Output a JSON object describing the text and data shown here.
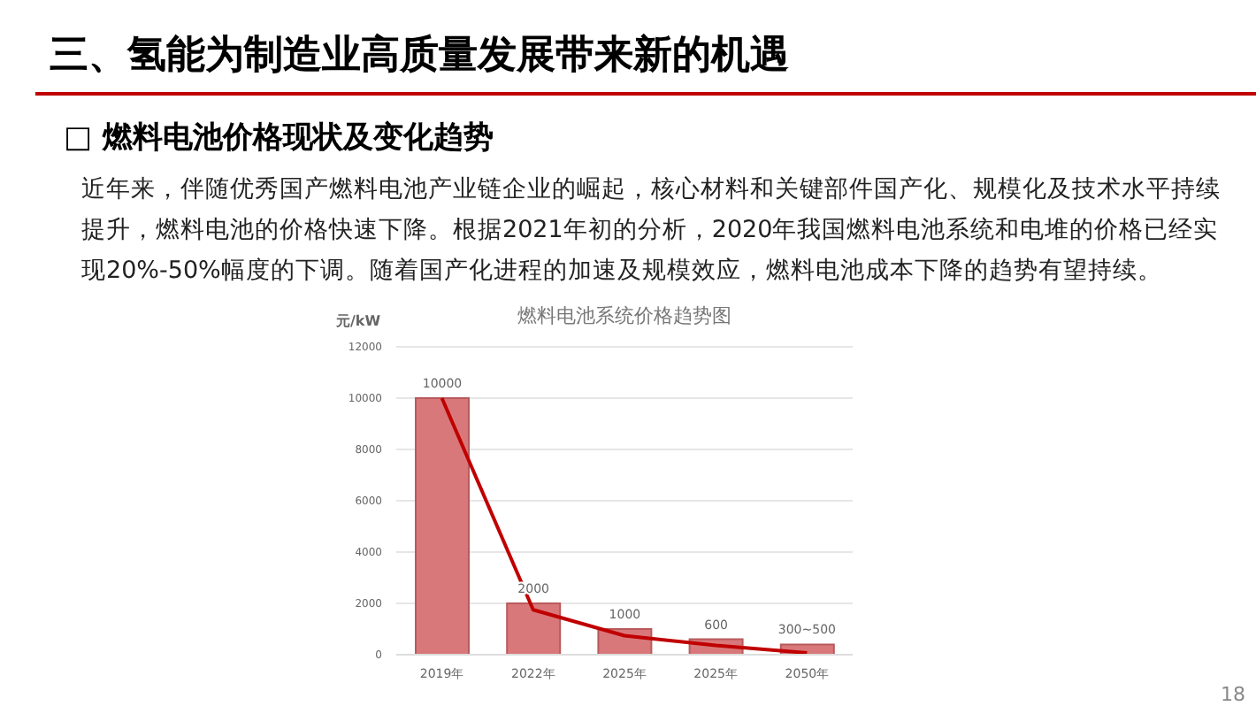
{
  "chart_data": {
    "type": "bar",
    "title": "燃料电池系统价格趋势图",
    "ylabel": "元/kW",
    "annotations": [
      {
        "text": "300~500",
        "x": "2050年",
        "y": 500
      },
      "三、氢能为制造业高质量发展带来新的机遇",
      "□ 燃料电池价格现状及变化趋势",
      "近年来，伴随优秀国产燃料电池产业链企业的崛起，核心材料和关键部件国产化、规模化及技术水平持续提升，燃料电池的价格快速下降。根据2021年初的分析，2020年我国燃料电池系统和电堆的价格已经实现20%-50%幅度的下调。随着国产化进程的加速及规模效应，燃料电池成本下降的趋势有望持续。",
      "18"
    ],
    "categories": [
      "2019年",
      "2022年",
      "2025年",
      "2025年",
      "2050年"
    ],
    "series": [
      {
        "color": "#d9787a",
        "values": [
          10000,
          2000,
          1000,
          600,
          400
        ],
        "value_labels": [
          "10000",
          "2000",
          "1000",
          "600",
          null
        ]
      },
      {
        "type": "line",
        "color": "#c00000",
        "values": [
          10000,
          1750,
          740,
          360,
          70
        ],
        "marker": "none"
      }
    ],
    "ylim": [
      0,
      12000
    ],
    "yticks": [
      0,
      2000,
      4000,
      6000,
      8000,
      10000,
      12000
    ],
    "grid": "y"
  }
}
